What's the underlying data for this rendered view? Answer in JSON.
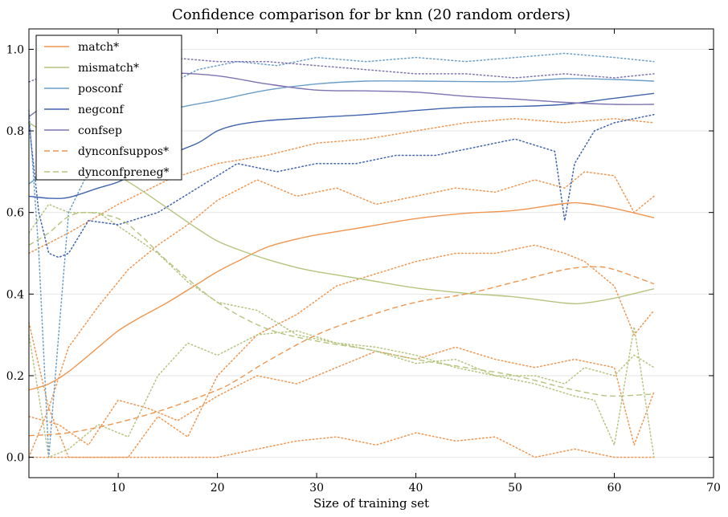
{
  "chart_data": {
    "type": "line",
    "title": "Confidence comparison for br knn (20 random orders)",
    "xlabel": "Size of training set",
    "ylabel": "",
    "xlim": [
      1,
      70
    ],
    "ylim": [
      -0.05,
      1.05
    ],
    "x_ticks": [
      10,
      20,
      30,
      40,
      50,
      60,
      70
    ],
    "y_ticks": [
      0.0,
      0.2,
      0.4,
      0.6,
      0.8,
      1.0
    ],
    "x_tick_labels": [
      "10",
      "20",
      "30",
      "40",
      "50",
      "60",
      "70"
    ],
    "y_tick_labels": [
      "0.0",
      "0.2",
      "0.4",
      "0.6",
      "0.8",
      "1.0"
    ],
    "grid": "horizontal",
    "legend_position": "top-left",
    "series": [
      {
        "name": "match*",
        "color": "#f0954e",
        "style": "solid",
        "x": [
          1,
          3,
          5,
          8,
          10,
          12,
          15,
          18,
          20,
          22,
          25,
          28,
          30,
          35,
          40,
          45,
          50,
          55,
          57,
          60,
          64
        ],
        "y": [
          0.165,
          0.18,
          0.21,
          0.27,
          0.31,
          0.34,
          0.38,
          0.425,
          0.455,
          0.48,
          0.515,
          0.535,
          0.545,
          0.565,
          0.585,
          0.598,
          0.605,
          0.622,
          0.622,
          0.61,
          0.587
        ]
      },
      {
        "name": "mismatch*",
        "color": "#b5c47e",
        "style": "solid",
        "x": [
          1,
          3,
          5,
          8,
          10,
          12,
          15,
          18,
          20,
          22,
          25,
          28,
          30,
          35,
          40,
          45,
          50,
          55,
          57,
          60,
          64
        ],
        "y": [
          0.82,
          0.79,
          0.76,
          0.72,
          0.69,
          0.66,
          0.61,
          0.56,
          0.53,
          0.51,
          0.485,
          0.465,
          0.455,
          0.435,
          0.415,
          0.402,
          0.393,
          0.378,
          0.378,
          0.39,
          0.413
        ]
      },
      {
        "name": "posconf",
        "color": "#6a9ec8",
        "style": "solid",
        "x": [
          1,
          5,
          10,
          15,
          20,
          25,
          30,
          35,
          40,
          45,
          50,
          55,
          60,
          64
        ],
        "y": [
          0.67,
          0.74,
          0.8,
          0.85,
          0.875,
          0.9,
          0.915,
          0.922,
          0.922,
          0.921,
          0.921,
          0.928,
          0.926,
          0.922
        ]
      },
      {
        "name": "negconf",
        "color": "#4064ad",
        "style": "solid",
        "x": [
          1,
          3,
          5,
          8,
          10,
          12,
          15,
          18,
          20,
          22,
          25,
          30,
          35,
          40,
          45,
          50,
          55,
          60,
          64
        ],
        "y": [
          0.64,
          0.635,
          0.637,
          0.66,
          0.675,
          0.7,
          0.74,
          0.77,
          0.8,
          0.815,
          0.825,
          0.833,
          0.84,
          0.85,
          0.858,
          0.86,
          0.865,
          0.88,
          0.892
        ]
      },
      {
        "name": "confsep",
        "color": "#7f72b0",
        "style": "solid",
        "x": [
          1,
          5,
          10,
          15,
          20,
          25,
          30,
          35,
          40,
          45,
          50,
          55,
          60,
          64
        ],
        "y": [
          0.835,
          0.9,
          0.935,
          0.942,
          0.935,
          0.915,
          0.9,
          0.898,
          0.895,
          0.885,
          0.878,
          0.87,
          0.865,
          0.865
        ]
      },
      {
        "name": "dynconfsuppos*",
        "color": "#f0954e",
        "style": "dashed",
        "x": [
          1,
          5,
          10,
          15,
          20,
          22,
          25,
          30,
          35,
          40,
          45,
          50,
          55,
          58,
          60,
          64
        ],
        "y": [
          0.053,
          0.06,
          0.085,
          0.12,
          0.165,
          0.19,
          0.235,
          0.3,
          0.345,
          0.38,
          0.4,
          0.43,
          0.46,
          0.467,
          0.46,
          0.425
        ]
      },
      {
        "name": "dynconfpreneg*",
        "color": "#b5c47e",
        "style": "dashed",
        "x": [
          1,
          3,
          5,
          7,
          10,
          12,
          15,
          20,
          25,
          30,
          35,
          40,
          45,
          50,
          55,
          58,
          60,
          64
        ],
        "y": [
          0.52,
          0.55,
          0.59,
          0.6,
          0.585,
          0.55,
          0.48,
          0.38,
          0.315,
          0.285,
          0.265,
          0.24,
          0.22,
          0.2,
          0.17,
          0.155,
          0.15,
          0.155
        ]
      }
    ],
    "bands": [
      {
        "color": "#f0954e",
        "x": [
          1,
          3,
          5,
          8,
          11,
          14,
          17,
          20,
          24,
          28,
          32,
          36,
          40,
          44,
          48,
          52,
          55,
          57,
          60,
          62,
          64
        ],
        "y": [
          0.33,
          0.12,
          0.27,
          0.37,
          0.46,
          0.52,
          0.57,
          0.63,
          0.68,
          0.64,
          0.66,
          0.62,
          0.64,
          0.66,
          0.65,
          0.68,
          0.66,
          0.7,
          0.69,
          0.6,
          0.64
        ]
      },
      {
        "color": "#f0954e",
        "x": [
          1,
          3,
          5,
          8,
          11,
          14,
          17,
          20,
          24,
          28,
          32,
          36,
          40,
          44,
          48,
          52,
          55,
          57,
          60,
          62,
          64
        ],
        "y": [
          0.0,
          0.12,
          0.0,
          0.0,
          0.0,
          0.1,
          0.05,
          0.2,
          0.3,
          0.35,
          0.42,
          0.45,
          0.48,
          0.5,
          0.5,
          0.52,
          0.5,
          0.48,
          0.42,
          0.3,
          0.36
        ]
      },
      {
        "color": "#f0954e",
        "x": [
          1,
          4,
          7,
          10,
          13,
          16,
          20,
          24,
          28,
          32,
          36,
          40,
          44,
          48,
          52,
          56,
          60,
          62,
          64
        ],
        "y": [
          0.1,
          0.08,
          0.03,
          0.14,
          0.12,
          0.09,
          0.15,
          0.2,
          0.18,
          0.22,
          0.26,
          0.24,
          0.27,
          0.24,
          0.22,
          0.24,
          0.22,
          0.03,
          0.16
        ]
      },
      {
        "color": "#f0954e",
        "x": [
          1,
          4,
          8,
          12,
          16,
          20,
          24,
          28,
          32,
          36,
          40,
          44,
          48,
          52,
          56,
          60,
          64
        ],
        "y": [
          0.0,
          0.0,
          0.0,
          0.0,
          0.0,
          0.0,
          0.02,
          0.04,
          0.05,
          0.03,
          0.06,
          0.04,
          0.05,
          0.0,
          0.02,
          0.0,
          0.0
        ]
      },
      {
        "color": "#f0954e",
        "x": [
          1,
          5,
          10,
          15,
          20,
          25,
          30,
          35,
          40,
          45,
          50,
          55,
          60,
          64
        ],
        "y": [
          0.5,
          0.55,
          0.62,
          0.68,
          0.72,
          0.74,
          0.77,
          0.78,
          0.8,
          0.82,
          0.83,
          0.82,
          0.83,
          0.82
        ]
      },
      {
        "color": "#b5c47e",
        "x": [
          1,
          3,
          5,
          8,
          11,
          14,
          17,
          20,
          24,
          28,
          32,
          36,
          40,
          44,
          48,
          52,
          55,
          57,
          60,
          62,
          64
        ],
        "y": [
          0.55,
          0.62,
          0.6,
          0.6,
          0.55,
          0.5,
          0.43,
          0.38,
          0.36,
          0.3,
          0.28,
          0.26,
          0.23,
          0.24,
          0.2,
          0.2,
          0.18,
          0.22,
          0.2,
          0.25,
          0.22
        ]
      },
      {
        "color": "#b5c47e",
        "x": [
          1,
          3,
          5,
          8,
          11,
          14,
          17,
          20,
          24,
          28,
          32,
          36,
          40,
          44,
          48,
          52,
          56,
          58,
          60,
          62,
          64
        ],
        "y": [
          0.3,
          0.0,
          0.02,
          0.08,
          0.05,
          0.2,
          0.28,
          0.25,
          0.3,
          0.31,
          0.28,
          0.27,
          0.25,
          0.22,
          0.2,
          0.18,
          0.15,
          0.14,
          0.03,
          0.32,
          0.0
        ]
      },
      {
        "color": "#6a9ec8",
        "x": [
          1,
          2,
          3,
          4,
          5,
          7,
          10,
          14,
          18,
          22,
          26,
          30,
          35,
          40,
          45,
          50,
          55,
          60,
          64
        ],
        "y": [
          0.85,
          0.5,
          0.0,
          0.3,
          0.6,
          0.7,
          0.82,
          0.9,
          0.95,
          0.97,
          0.96,
          0.98,
          0.97,
          0.98,
          0.97,
          0.98,
          0.99,
          0.98,
          0.97
        ]
      },
      {
        "color": "#4064ad",
        "x": [
          1,
          2,
          3,
          4,
          5,
          7,
          10,
          14,
          18,
          22,
          26,
          30,
          34,
          38,
          42,
          46,
          50,
          54,
          55,
          56,
          58,
          60,
          64
        ],
        "y": [
          0.82,
          0.6,
          0.5,
          0.49,
          0.5,
          0.58,
          0.57,
          0.6,
          0.66,
          0.72,
          0.7,
          0.72,
          0.72,
          0.74,
          0.74,
          0.76,
          0.78,
          0.75,
          0.58,
          0.72,
          0.8,
          0.82,
          0.84
        ]
      },
      {
        "color": "#7f72b0",
        "x": [
          1,
          5,
          10,
          15,
          20,
          25,
          30,
          35,
          40,
          45,
          50,
          55,
          60,
          64
        ],
        "y": [
          0.92,
          0.96,
          0.97,
          0.98,
          0.97,
          0.97,
          0.96,
          0.95,
          0.94,
          0.94,
          0.93,
          0.94,
          0.93,
          0.94
        ]
      }
    ]
  }
}
